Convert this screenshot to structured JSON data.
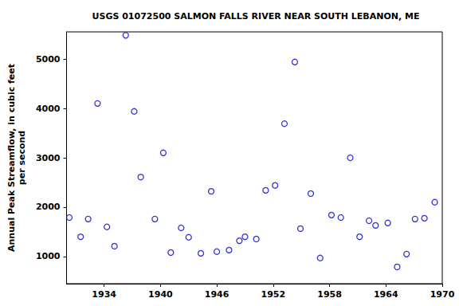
{
  "chart_data": {
    "type": "scatter",
    "title": "USGS 01072500 SALMON FALLS RIVER NEAR SOUTH LEBANON, ME",
    "y_label": "Annual Peak Streamflow, in cubic feet\nper second",
    "x": [
      1930.3,
      1931.5,
      1932.3,
      1933.3,
      1934.3,
      1935.1,
      1936.3,
      1937.2,
      1937.9,
      1939.4,
      1940.3,
      1941.1,
      1942.2,
      1943.0,
      1944.3,
      1945.4,
      1946.0,
      1947.3,
      1948.4,
      1949.0,
      1950.2,
      1951.2,
      1952.2,
      1953.2,
      1954.3,
      1954.9,
      1956.0,
      1957.0,
      1958.2,
      1959.2,
      1960.2,
      1961.2,
      1962.2,
      1962.9,
      1964.2,
      1965.2,
      1966.2,
      1967.1,
      1968.1,
      1969.2
    ],
    "values": [
      1790,
      1400,
      1760,
      4100,
      1600,
      1210,
      5480,
      3940,
      2610,
      1760,
      3100,
      1080,
      1580,
      1390,
      1065,
      2320,
      1100,
      1130,
      1320,
      1400,
      1355,
      2340,
      2440,
      3690,
      4940,
      1565,
      2275,
      970,
      1840,
      1790,
      3000,
      1400,
      1725,
      1630,
      1680,
      790,
      1050,
      1760,
      1775,
      2100
    ],
    "color": "#0000cc",
    "marker": "circle",
    "grid": false,
    "xlim": [
      1930,
      1970
    ],
    "xticks": [
      1934,
      1940,
      1946,
      1952,
      1958,
      1964,
      1970
    ],
    "ylim": [
      450,
      5550
    ],
    "yticks": [
      1000,
      2000,
      3000,
      4000,
      5000
    ]
  }
}
